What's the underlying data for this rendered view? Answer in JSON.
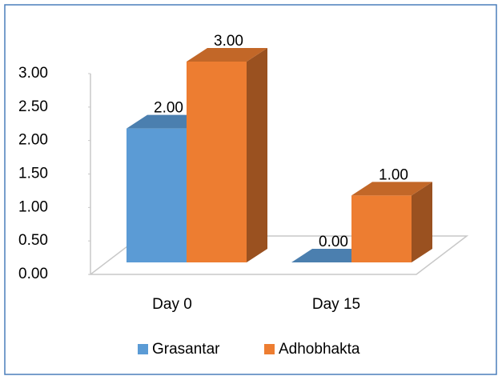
{
  "chart_data": {
    "type": "bar3d",
    "categories": [
      "Day 0",
      "Day 15"
    ],
    "series": [
      {
        "name": "Grasantar",
        "color": "#5b9bd5",
        "values": [
          2,
          0
        ],
        "value_labels": [
          "2.00",
          "0.00"
        ]
      },
      {
        "name": "Adhobhakta",
        "color": "#ed7d31",
        "values": [
          3,
          1
        ],
        "value_labels": [
          "3.00",
          "1.00"
        ]
      }
    ],
    "ylim": [
      0,
      3
    ],
    "yticks": [
      {
        "value": 0,
        "label": "0.00"
      },
      {
        "value": 0.5,
        "label": "0.50"
      },
      {
        "value": 1,
        "label": "1.00"
      },
      {
        "value": 1.5,
        "label": "1.50"
      },
      {
        "value": 2,
        "label": "2.00"
      },
      {
        "value": 2.5,
        "label": "2.50"
      },
      {
        "value": 3,
        "label": "3.00"
      }
    ],
    "legend": "bottom"
  }
}
